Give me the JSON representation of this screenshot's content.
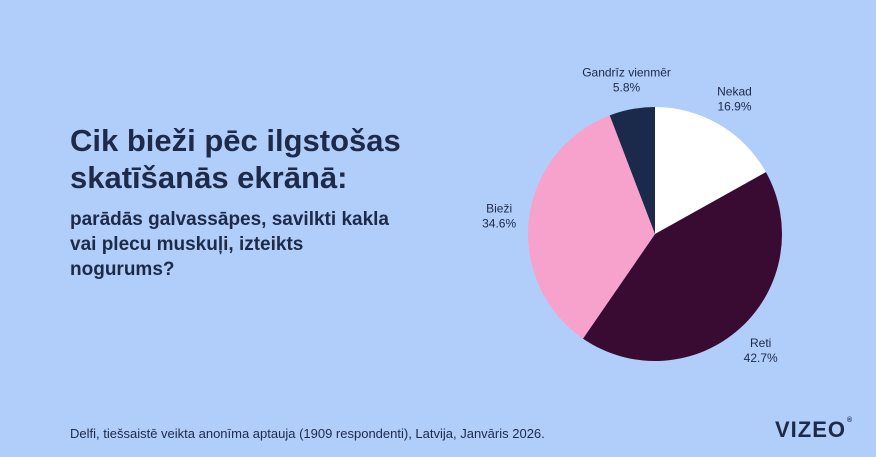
{
  "heading": {
    "title": "Cik bieži pēc ilgstošas skatīšanās ekrānā:",
    "subtitle": "parādās galvassāpes, savilkti kakla vai plecu muskuļi, izteikts nogurums?"
  },
  "footer": {
    "source": "Delfi, tiešsaistē veikta anonīma aptauja (1909 respondenti), Latvija, Janvāris 2026.",
    "logo": "VIZEO",
    "logo_mark": "®"
  },
  "chart_data": {
    "type": "pie",
    "slices": [
      {
        "label": "Nekad",
        "value": 16.9,
        "value_label": "16.9%",
        "color": "#ffffff"
      },
      {
        "label": "Reti",
        "value": 42.7,
        "value_label": "42.7%",
        "color": "#3a0b32"
      },
      {
        "label": "Bieži",
        "value": 34.6,
        "value_label": "34.6%",
        "color": "#f7a2cd"
      },
      {
        "label": "Gandrīz vienmēr",
        "value": 5.8,
        "value_label": "5.8%",
        "color": "#1b2a4a"
      }
    ],
    "start": "12 o'clock",
    "direction": "clockwise",
    "legend": "none"
  }
}
